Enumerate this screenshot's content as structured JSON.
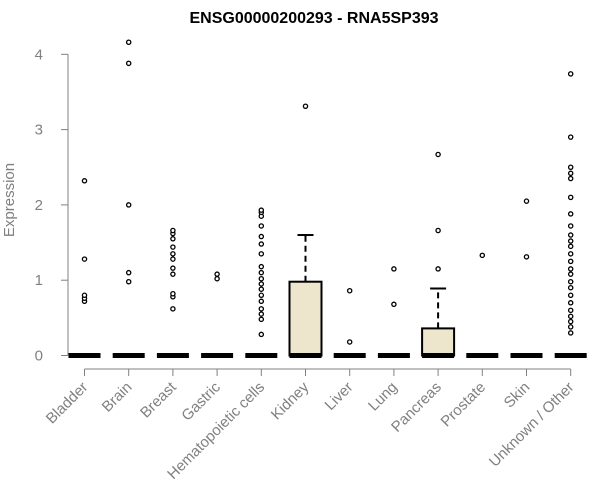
{
  "chart_data": {
    "type": "box",
    "title": "ENSG00000200293 - RNA5SP393",
    "xlabel": "",
    "ylabel": "Expression",
    "ylim": [
      0,
      4.2
    ],
    "yticks": [
      "0",
      "1",
      "2",
      "3",
      "4"
    ],
    "grid": false,
    "categories": [
      "Bladder",
      "Brain",
      "Breast",
      "Gastric",
      "Hematopoietic cells",
      "Kidney",
      "Liver",
      "Lung",
      "Pancreas",
      "Prostate",
      "Skin",
      "Unknown / Other"
    ],
    "boxes": [
      {
        "category": "Bladder",
        "q1": 0,
        "median": 0,
        "q3": 0,
        "whisker_low": 0,
        "whisker_high": 0,
        "outliers": [
          0.72,
          0.76,
          0.8,
          1.28,
          2.32
        ]
      },
      {
        "category": "Brain",
        "q1": 0,
        "median": 0,
        "q3": 0,
        "whisker_low": 0,
        "whisker_high": 0,
        "outliers": [
          0.98,
          1.1,
          2.0,
          3.88,
          4.16
        ]
      },
      {
        "category": "Breast",
        "q1": 0,
        "median": 0,
        "q3": 0,
        "whisker_low": 0,
        "whisker_high": 0,
        "outliers": [
          0.62,
          0.78,
          0.82,
          1.08,
          1.16,
          1.28,
          1.35,
          1.44,
          1.55,
          1.62,
          1.66
        ]
      },
      {
        "category": "Gastric",
        "q1": 0,
        "median": 0,
        "q3": 0,
        "whisker_low": 0,
        "whisker_high": 0,
        "outliers": [
          1.02,
          1.08
        ]
      },
      {
        "category": "Hematopoietic cells",
        "q1": 0,
        "median": 0,
        "q3": 0,
        "whisker_low": 0,
        "whisker_high": 0,
        "outliers": [
          0.28,
          0.48,
          0.55,
          0.62,
          0.72,
          0.8,
          0.88,
          0.95,
          1.02,
          1.1,
          1.18,
          1.35,
          1.48,
          1.58,
          1.72,
          1.85,
          1.9,
          1.93
        ]
      },
      {
        "category": "Kidney",
        "q1": 0,
        "median": 0,
        "q3": 0.98,
        "whisker_low": 0,
        "whisker_high": 1.6,
        "outliers": [
          3.31
        ]
      },
      {
        "category": "Liver",
        "q1": 0,
        "median": 0,
        "q3": 0,
        "whisker_low": 0,
        "whisker_high": 0,
        "outliers": [
          0.18,
          0.86
        ]
      },
      {
        "category": "Lung",
        "q1": 0,
        "median": 0,
        "q3": 0,
        "whisker_low": 0,
        "whisker_high": 0,
        "outliers": [
          0.68,
          1.15
        ]
      },
      {
        "category": "Pancreas",
        "q1": 0,
        "median": 0,
        "q3": 0.36,
        "whisker_low": 0,
        "whisker_high": 0.89,
        "outliers": [
          1.15,
          1.66,
          2.67
        ]
      },
      {
        "category": "Prostate",
        "q1": 0,
        "median": 0,
        "q3": 0,
        "whisker_low": 0,
        "whisker_high": 0,
        "outliers": [
          1.33
        ]
      },
      {
        "category": "Skin",
        "q1": 0,
        "median": 0,
        "q3": 0,
        "whisker_low": 0,
        "whisker_high": 0,
        "outliers": [
          1.31,
          2.05
        ]
      },
      {
        "category": "Unknown / Other",
        "q1": 0,
        "median": 0,
        "q3": 0,
        "whisker_low": 0,
        "whisker_high": 0,
        "outliers": [
          0.3,
          0.38,
          0.45,
          0.52,
          0.6,
          0.7,
          0.8,
          0.9,
          0.98,
          1.08,
          1.15,
          1.25,
          1.35,
          1.45,
          1.52,
          1.6,
          1.72,
          1.88,
          2.1,
          2.35,
          2.42,
          2.5,
          2.9,
          3.74
        ]
      }
    ]
  },
  "colors": {
    "box_fill": "#ede6cc",
    "outline": "#000000",
    "axis": "#808080",
    "axis_text": "#808080",
    "title": "#000000"
  }
}
